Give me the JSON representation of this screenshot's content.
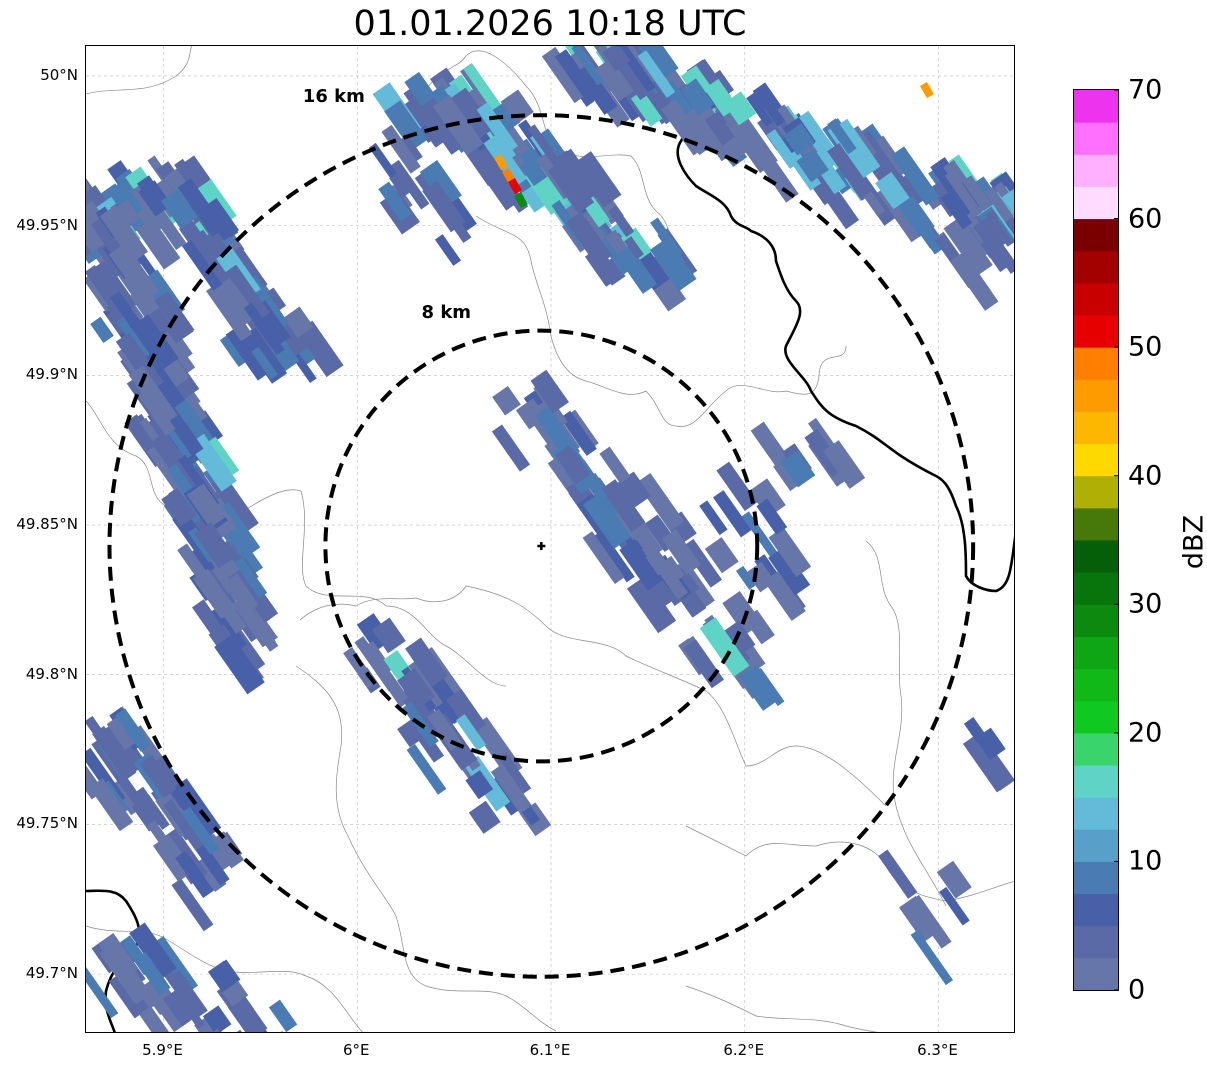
{
  "title": "01.01.2026 10:18 UTC",
  "map": {
    "lon_range": [
      5.86,
      6.34
    ],
    "lat_range": [
      49.68,
      50.01
    ],
    "y_ticks": [
      "50°N",
      "49.95°N",
      "49.9°N",
      "49.85°N",
      "49.8°N",
      "49.75°N",
      "49.7°N"
    ],
    "x_ticks": [
      "5.9°E",
      "6°E",
      "6.1°E",
      "6.2°E",
      "6.3°E"
    ],
    "radar_site": {
      "lon": 6.095,
      "lat": 49.843
    },
    "rings": [
      {
        "label": "8 km",
        "radius_km": 8
      },
      {
        "label": "16 km",
        "radius_km": 16
      }
    ],
    "grid": true
  },
  "colorbar": {
    "label": "dBZ",
    "ticks": [
      "0",
      "10",
      "20",
      "30",
      "40",
      "50",
      "60",
      "70"
    ],
    "min": 0,
    "max": 70,
    "step": 2.5,
    "colors": [
      "#6676a8",
      "#5a6aa6",
      "#4760a7",
      "#4a7bb2",
      "#589fca",
      "#63bbd9",
      "#5fd4c6",
      "#3ad46c",
      "#10c920",
      "#10b818",
      "#0ea614",
      "#0c8a10",
      "#08750c",
      "#055e08",
      "#46780a",
      "#aeb005",
      "#fdd801",
      "#feb701",
      "#fe9b01",
      "#fe7f01",
      "#e70000",
      "#c80000",
      "#a30000",
      "#7a0000",
      "#ffdcff",
      "#ffb0ff",
      "#ff70ff",
      "#ee33ee"
    ]
  }
}
